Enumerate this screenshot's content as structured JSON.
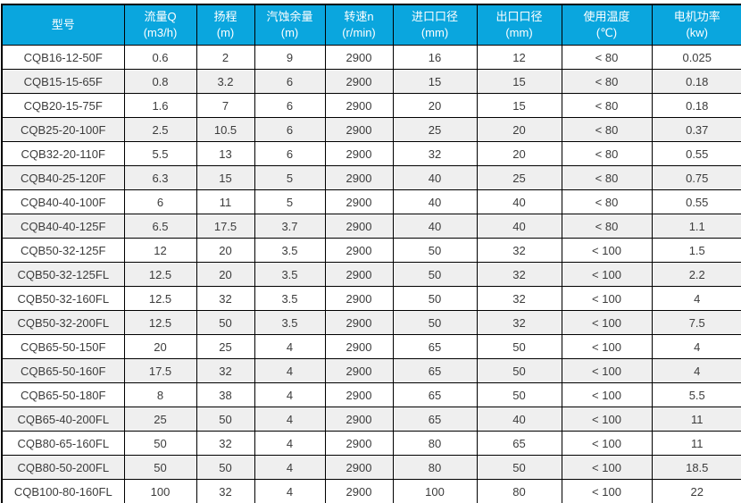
{
  "table": {
    "columns": [
      {
        "key": "model",
        "title": "型号",
        "unit": ""
      },
      {
        "key": "flow",
        "title": "流量Q",
        "unit": "(m3/h)"
      },
      {
        "key": "head",
        "title": "扬程",
        "unit": "(m)"
      },
      {
        "key": "npsh",
        "title": "汽蚀余量",
        "unit": "(m)"
      },
      {
        "key": "speed",
        "title": "转速n",
        "unit": "(r/min)"
      },
      {
        "key": "inlet",
        "title": "进口口径",
        "unit": "(mm)"
      },
      {
        "key": "outlet",
        "title": "出口口径",
        "unit": "(mm)"
      },
      {
        "key": "temp",
        "title": "使用温度",
        "unit": "(℃)"
      },
      {
        "key": "power",
        "title": "电机功率",
        "unit": "(kw)"
      }
    ],
    "rows": [
      [
        "CQB16-12-50F",
        "0.6",
        "2",
        "9",
        "2900",
        "16",
        "12",
        "< 80",
        "0.025"
      ],
      [
        "CQB15-15-65F",
        "0.8",
        "3.2",
        "6",
        "2900",
        "15",
        "15",
        "< 80",
        "0.18"
      ],
      [
        "CQB20-15-75F",
        "1.6",
        "7",
        "6",
        "2900",
        "20",
        "15",
        "< 80",
        "0.18"
      ],
      [
        "CQB25-20-100F",
        "2.5",
        "10.5",
        "6",
        "2900",
        "25",
        "20",
        "< 80",
        "0.37"
      ],
      [
        "CQB32-20-110F",
        "5.5",
        "13",
        "6",
        "2900",
        "32",
        "20",
        "< 80",
        "0.55"
      ],
      [
        "CQB40-25-120F",
        "6.3",
        "15",
        "5",
        "2900",
        "40",
        "25",
        "< 80",
        "0.75"
      ],
      [
        "CQB40-40-100F",
        "6",
        "11",
        "5",
        "2900",
        "40",
        "40",
        "< 80",
        "0.55"
      ],
      [
        "CQB40-40-125F",
        "6.5",
        "17.5",
        "3.7",
        "2900",
        "40",
        "40",
        "< 80",
        "1.1"
      ],
      [
        "CQB50-32-125F",
        "12",
        "20",
        "3.5",
        "2900",
        "50",
        "32",
        "< 100",
        "1.5"
      ],
      [
        "CQB50-32-125FL",
        "12.5",
        "20",
        "3.5",
        "2900",
        "50",
        "32",
        "< 100",
        "2.2"
      ],
      [
        "CQB50-32-160FL",
        "12.5",
        "32",
        "3.5",
        "2900",
        "50",
        "32",
        "< 100",
        "4"
      ],
      [
        "CQB50-32-200FL",
        "12.5",
        "50",
        "3.5",
        "2900",
        "50",
        "32",
        "< 100",
        "7.5"
      ],
      [
        "CQB65-50-150F",
        "20",
        "25",
        "4",
        "2900",
        "65",
        "50",
        "< 100",
        "4"
      ],
      [
        "CQB65-50-160F",
        "17.5",
        "32",
        "4",
        "2900",
        "65",
        "50",
        "< 100",
        "4"
      ],
      [
        "CQB65-50-180F",
        "8",
        "38",
        "4",
        "2900",
        "65",
        "50",
        "< 100",
        "5.5"
      ],
      [
        "CQB65-40-200FL",
        "25",
        "50",
        "4",
        "2900",
        "65",
        "40",
        "< 100",
        "11"
      ],
      [
        "CQB80-65-160FL",
        "50",
        "32",
        "4",
        "2900",
        "80",
        "65",
        "< 100",
        "11"
      ],
      [
        "CQB80-50-200FL",
        "50",
        "50",
        "4",
        "2900",
        "80",
        "50",
        "< 100",
        "18.5"
      ],
      [
        "CQB100-80-160FL",
        "100",
        "32",
        "4",
        "2900",
        "100",
        "80",
        "< 100",
        "22"
      ]
    ]
  },
  "colors": {
    "header_bg": "#0aa6de",
    "header_text": "#ffffff",
    "row_alt_bg": "#efefef",
    "border": "#000000",
    "cell_text": "#3c3c3c"
  }
}
